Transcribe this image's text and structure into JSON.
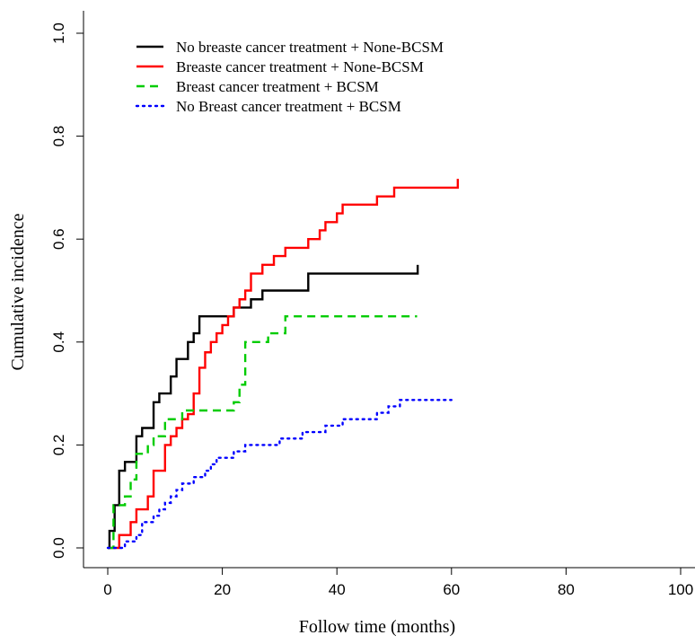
{
  "chart_data": {
    "type": "line",
    "title": "",
    "xlabel": "Follow time (months)",
    "ylabel": "Cumulative incidence",
    "xlim": [
      0,
      100
    ],
    "ylim": [
      0,
      1.0
    ],
    "xticks": [
      0,
      20,
      40,
      60,
      80,
      100
    ],
    "yticks": [
      0.0,
      0.2,
      0.4,
      0.6,
      0.8,
      1.0
    ],
    "xtick_labels": [
      "0",
      "20",
      "40",
      "60",
      "80",
      "100"
    ],
    "ytick_labels": [
      "0.0",
      "0.2",
      "0.4",
      "0.6",
      "0.8",
      "1.0"
    ],
    "grid": false,
    "legend_position": "top-left",
    "series": [
      {
        "name": "No breaste cancer treatment + None-BCSM",
        "color": "#000000",
        "line_style": "solid",
        "step": true,
        "x": [
          0,
          0.3,
          1.2,
          2,
          3,
          5,
          6,
          8,
          9,
          11,
          12,
          14,
          15,
          16,
          22,
          23,
          25,
          26,
          27,
          35,
          54,
          54.1
        ],
        "y": [
          0,
          0.033,
          0.083,
          0.15,
          0.167,
          0.217,
          0.233,
          0.283,
          0.3,
          0.333,
          0.367,
          0.4,
          0.417,
          0.45,
          0.467,
          0.467,
          0.483,
          0.483,
          0.5,
          0.533,
          0.533,
          0.55
        ]
      },
      {
        "name": "Breaste cancer treatment + None-BCSM",
        "color": "#ff0000",
        "line_style": "solid",
        "step": true,
        "x": [
          0,
          2,
          4,
          5,
          7,
          8,
          10,
          11,
          12,
          13,
          14,
          15,
          16,
          17,
          18,
          19,
          20,
          21,
          22,
          23,
          24,
          25,
          27,
          29,
          31,
          35,
          37,
          38,
          39,
          40,
          41,
          42,
          43,
          47,
          50,
          53,
          61,
          61.1
        ],
        "y": [
          0,
          0.025,
          0.05,
          0.075,
          0.1,
          0.15,
          0.2,
          0.217,
          0.233,
          0.25,
          0.26,
          0.3,
          0.35,
          0.38,
          0.4,
          0.417,
          0.433,
          0.45,
          0.467,
          0.483,
          0.5,
          0.533,
          0.55,
          0.567,
          0.583,
          0.6,
          0.617,
          0.633,
          0.633,
          0.65,
          0.667,
          0.667,
          0.667,
          0.683,
          0.7,
          0.7,
          0.7,
          0.717
        ]
      },
      {
        "name": "Breast cancer treatment + BCSM",
        "color": "#00cc00",
        "line_style": "dashed",
        "step": true,
        "x": [
          0,
          1,
          3,
          4,
          5,
          7,
          8,
          10,
          13,
          16,
          22,
          23,
          24,
          28,
          31,
          54
        ],
        "y": [
          0,
          0.083,
          0.1,
          0.133,
          0.183,
          0.2,
          0.217,
          0.25,
          0.267,
          0.267,
          0.283,
          0.317,
          0.4,
          0.417,
          0.45,
          0.45
        ]
      },
      {
        "name": "No Breast cancer treatment + BCSM",
        "color": "#0000ff",
        "line_style": "dotted",
        "step": true,
        "x": [
          0,
          2,
          3,
          5,
          6,
          7,
          8,
          9,
          10,
          11,
          12,
          13,
          14,
          15,
          17,
          18,
          19,
          20,
          22,
          24,
          28,
          30,
          34,
          35,
          38,
          41,
          43,
          47,
          48,
          49,
          51,
          52,
          60
        ],
        "y": [
          0,
          0.0,
          0.0125,
          0.025,
          0.05,
          0.05,
          0.0625,
          0.075,
          0.0875,
          0.1,
          0.1125,
          0.125,
          0.125,
          0.1375,
          0.15,
          0.1625,
          0.175,
          0.175,
          0.1875,
          0.2,
          0.2,
          0.2125,
          0.225,
          0.225,
          0.2375,
          0.25,
          0.25,
          0.2625,
          0.2625,
          0.275,
          0.2875,
          0.2875,
          0.2875
        ]
      }
    ]
  }
}
